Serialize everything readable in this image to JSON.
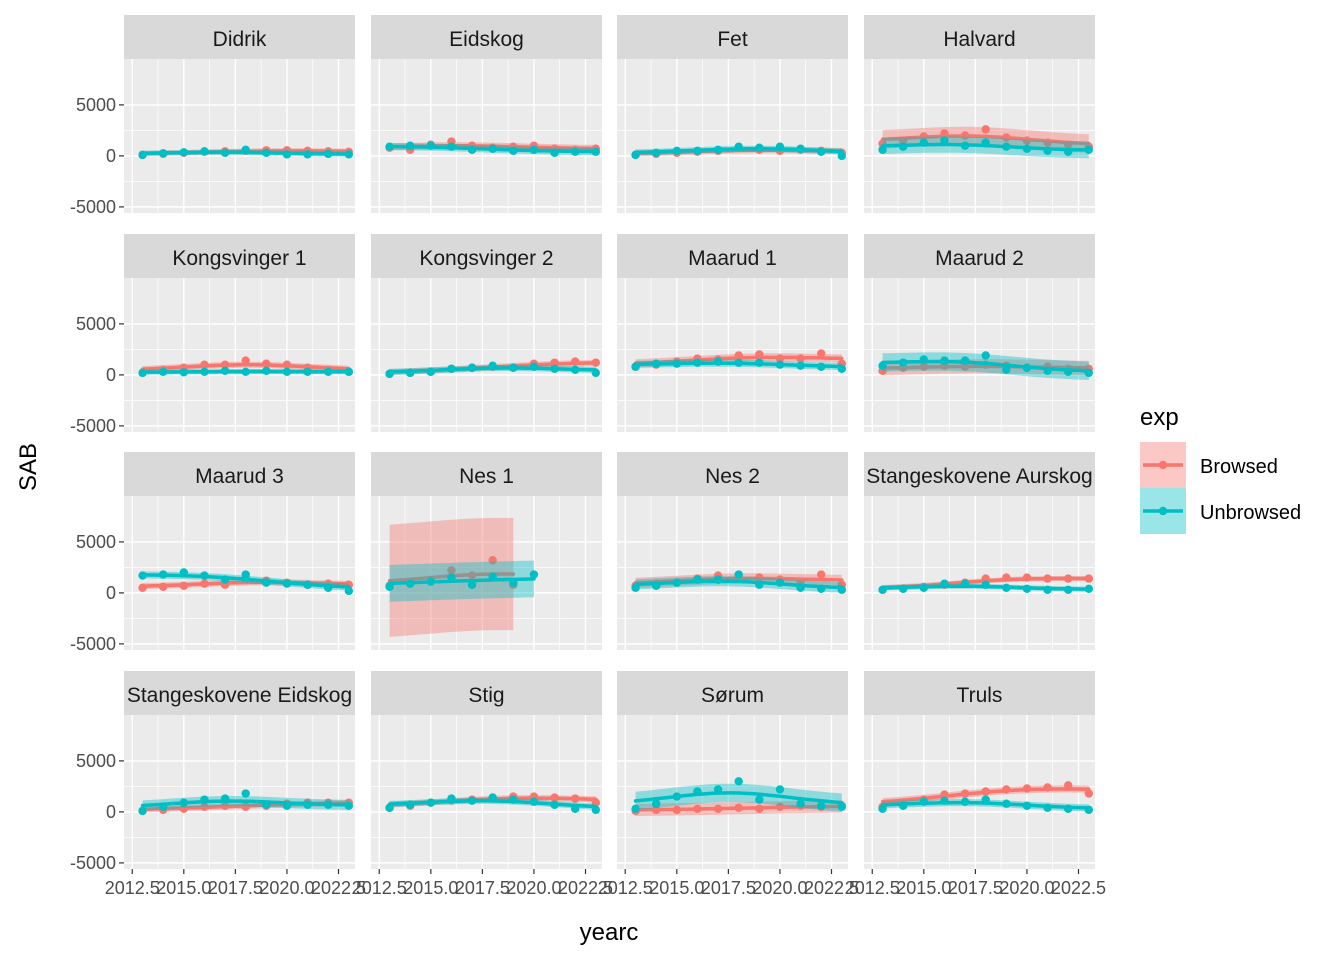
{
  "chart_data": {
    "type": "line",
    "facet_by": "site",
    "xlabel": "yearc",
    "ylabel": "SAB",
    "ylim": [
      -5600,
      9500
    ],
    "xlim": [
      2012.1,
      2023.3
    ],
    "y_ticks": [
      -5000,
      0,
      5000
    ],
    "y_tick_labels": [
      "-5000",
      "0",
      "5000"
    ],
    "x_ticks": [
      2012.5,
      2015,
      2017.5,
      2020,
      2022.5
    ],
    "x_tick_labels": [
      "2012.5",
      "2015.0",
      "2017.5",
      "2020.0",
      "2022.5"
    ],
    "grid": true,
    "legend": {
      "title": "exp",
      "position": "right",
      "entries": [
        {
          "name": "Browsed",
          "color": "#F8766D"
        },
        {
          "name": "Unbrowsed",
          "color": "#00BFC4"
        }
      ]
    },
    "colors": {
      "Browsed": "#F8766D",
      "Unbrowsed": "#00BFC4",
      "panel_bg": "#EBEBEB",
      "strip_bg": "#D9D9D9",
      "grid": "#FFFFFF"
    },
    "panels": [
      {
        "title": "Didrik",
        "Browsed": {
          "x": [
            2013,
            2014,
            2015,
            2016,
            2017,
            2018,
            2019,
            2020,
            2021,
            2022,
            2023
          ],
          "y": [
            100,
            200,
            300,
            400,
            450,
            500,
            550,
            550,
            500,
            450,
            400
          ],
          "se": 250
        },
        "Unbrowsed": {
          "x": [
            2013,
            2014,
            2015,
            2016,
            2017,
            2018,
            2019,
            2020,
            2021,
            2022,
            2023
          ],
          "y": [
            100,
            250,
            350,
            450,
            300,
            600,
            300,
            150,
            150,
            200,
            150
          ],
          "se": 250
        }
      },
      {
        "title": "Eidskog",
        "Browsed": {
          "x": [
            2013,
            2014,
            2015,
            2016,
            2017,
            2018,
            2019,
            2020,
            2021,
            2022,
            2023
          ],
          "y": [
            800,
            600,
            1100,
            1400,
            1000,
            800,
            900,
            1000,
            700,
            600,
            700
          ],
          "se": 350
        },
        "Unbrowsed": {
          "x": [
            2013,
            2014,
            2015,
            2016,
            2017,
            2018,
            2019,
            2020,
            2021,
            2022,
            2023
          ],
          "y": [
            900,
            1000,
            1000,
            900,
            600,
            700,
            500,
            600,
            300,
            400,
            400
          ],
          "se": 350
        }
      },
      {
        "title": "Fet",
        "Browsed": {
          "x": [
            2013,
            2014,
            2015,
            2016,
            2017,
            2018,
            2019,
            2020,
            2021,
            2022,
            2023
          ],
          "y": [
            100,
            200,
            300,
            400,
            500,
            800,
            600,
            500,
            600,
            500,
            300
          ],
          "se": 300
        },
        "Unbrowsed": {
          "x": [
            2013,
            2014,
            2015,
            2016,
            2017,
            2018,
            2019,
            2020,
            2021,
            2022,
            2023
          ],
          "y": [
            100,
            300,
            500,
            500,
            600,
            900,
            800,
            900,
            700,
            400,
            0
          ],
          "se": 300
        }
      },
      {
        "title": "Halvard",
        "Browsed": {
          "x": [
            2013,
            2014,
            2015,
            2016,
            2017,
            2018,
            2019,
            2020,
            2021,
            2022,
            2023
          ],
          "y": [
            1200,
            1500,
            1900,
            2200,
            2000,
            2600,
            1800,
            1500,
            1300,
            1100,
            900
          ],
          "se": 900
        },
        "Unbrowsed": {
          "x": [
            2013,
            2014,
            2015,
            2016,
            2017,
            2018,
            2019,
            2020,
            2021,
            2022,
            2023
          ],
          "y": [
            600,
            900,
            1300,
            1500,
            1000,
            1300,
            900,
            700,
            500,
            400,
            600
          ],
          "se": 800
        }
      },
      {
        "title": "Kongsvinger 1",
        "Browsed": {
          "x": [
            2013,
            2014,
            2015,
            2016,
            2017,
            2018,
            2019,
            2020,
            2021,
            2022,
            2023
          ],
          "y": [
            200,
            500,
            700,
            1000,
            1000,
            1400,
            1100,
            1000,
            700,
            500,
            300
          ],
          "se": 300
        },
        "Unbrowsed": {
          "x": [
            2013,
            2014,
            2015,
            2016,
            2017,
            2018,
            2019,
            2020,
            2021,
            2022,
            2023
          ],
          "y": [
            200,
            300,
            250,
            300,
            400,
            300,
            400,
            300,
            300,
            300,
            300
          ],
          "se": 250
        }
      },
      {
        "title": "Kongsvinger 2",
        "Browsed": {
          "x": [
            2013,
            2014,
            2015,
            2016,
            2017,
            2018,
            2019,
            2020,
            2021,
            2022,
            2023
          ],
          "y": [
            100,
            200,
            300,
            600,
            700,
            800,
            700,
            1100,
            1200,
            1300,
            1200
          ],
          "se": 300
        },
        "Unbrowsed": {
          "x": [
            2013,
            2014,
            2015,
            2016,
            2017,
            2018,
            2019,
            2020,
            2021,
            2022,
            2023
          ],
          "y": [
            100,
            200,
            300,
            600,
            700,
            900,
            700,
            800,
            600,
            500,
            200
          ],
          "se": 300
        }
      },
      {
        "title": "Maarud 1",
        "Browsed": {
          "x": [
            2013,
            2014,
            2015,
            2016,
            2017,
            2018,
            2019,
            2020,
            2021,
            2022,
            2023
          ],
          "y": [
            800,
            1000,
            1300,
            1600,
            1500,
            1900,
            2000,
            1600,
            1600,
            2100,
            1100
          ],
          "se": 400
        },
        "Unbrowsed": {
          "x": [
            2013,
            2014,
            2015,
            2016,
            2017,
            2018,
            2019,
            2020,
            2021,
            2022,
            2023
          ],
          "y": [
            800,
            1100,
            1100,
            1200,
            1300,
            1200,
            1200,
            1000,
            900,
            800,
            600
          ],
          "se": 350
        }
      },
      {
        "title": "Maarud 2",
        "Browsed": {
          "x": [
            2013,
            2014,
            2015,
            2016,
            2017,
            2018,
            2019,
            2020,
            2021,
            2022,
            2023
          ],
          "y": [
            400,
            700,
            800,
            900,
            800,
            1000,
            900,
            700,
            800,
            600,
            600
          ],
          "se": 700
        },
        "Unbrowsed": {
          "x": [
            2013,
            2014,
            2015,
            2016,
            2017,
            2018,
            2019,
            2020,
            2021,
            2022,
            2023
          ],
          "y": [
            900,
            1200,
            1500,
            1400,
            1400,
            1900,
            500,
            700,
            400,
            300,
            200
          ],
          "se": 900
        }
      },
      {
        "title": "Maarud 3",
        "Browsed": {
          "x": [
            2013,
            2014,
            2015,
            2016,
            2017,
            2018,
            2019,
            2020,
            2021,
            2022,
            2023
          ],
          "y": [
            500,
            600,
            700,
            900,
            800,
            1500,
            1200,
            1000,
            800,
            900,
            800
          ],
          "se": 300
        },
        "Unbrowsed": {
          "x": [
            2013,
            2014,
            2015,
            2016,
            2017,
            2018,
            2019,
            2020,
            2021,
            2022,
            2023
          ],
          "y": [
            1700,
            1800,
            2000,
            1700,
            1300,
            1800,
            1000,
            900,
            800,
            500,
            200
          ],
          "se": 350
        }
      },
      {
        "title": "Nes 1",
        "Browsed": {
          "x": [
            2013,
            2014,
            2015,
            2016,
            2017,
            2018,
            2019
          ],
          "y": [
            700,
            1000,
            1200,
            2200,
            1700,
            3200,
            800
          ],
          "se": 5500
        },
        "Unbrowsed": {
          "x": [
            2013,
            2014,
            2015,
            2016,
            2017,
            2018,
            2019,
            2020
          ],
          "y": [
            600,
            900,
            1100,
            1500,
            800,
            1600,
            1000,
            1800
          ],
          "se": 1800
        }
      },
      {
        "title": "Nes 2",
        "Browsed": {
          "x": [
            2013,
            2014,
            2015,
            2016,
            2017,
            2018,
            2019,
            2020,
            2021,
            2022,
            2023
          ],
          "y": [
            700,
            900,
            1000,
            1400,
            1700,
            1600,
            1500,
            1300,
            1100,
            1800,
            800
          ],
          "se": 500
        },
        "Unbrowsed": {
          "x": [
            2013,
            2014,
            2015,
            2016,
            2017,
            2018,
            2019,
            2020,
            2021,
            2022,
            2023
          ],
          "y": [
            500,
            700,
            1000,
            1300,
            1300,
            1800,
            800,
            1000,
            500,
            400,
            300
          ],
          "se": 500
        }
      },
      {
        "title": "Stangeskovene Aurskog",
        "Browsed": {
          "x": [
            2013,
            2014,
            2015,
            2016,
            2017,
            2018,
            2019,
            2020,
            2021,
            2022,
            2023
          ],
          "y": [
            300,
            400,
            600,
            800,
            1000,
            1400,
            1500,
            1500,
            1400,
            1400,
            1400
          ],
          "se": 250
        },
        "Unbrowsed": {
          "x": [
            2013,
            2014,
            2015,
            2016,
            2017,
            2018,
            2019,
            2020,
            2021,
            2022,
            2023
          ],
          "y": [
            300,
            400,
            500,
            900,
            900,
            800,
            500,
            400,
            300,
            300,
            400
          ],
          "se": 250
        }
      },
      {
        "title": "Stangeskovene Eidskog",
        "Browsed": {
          "x": [
            2013,
            2014,
            2015,
            2016,
            2017,
            2018,
            2019,
            2020,
            2021,
            2022,
            2023
          ],
          "y": [
            100,
            200,
            300,
            500,
            600,
            500,
            600,
            800,
            900,
            900,
            900
          ],
          "se": 300
        },
        "Unbrowsed": {
          "x": [
            2013,
            2014,
            2015,
            2016,
            2017,
            2018,
            2019,
            2020,
            2021,
            2022,
            2023
          ],
          "y": [
            100,
            500,
            900,
            1200,
            1300,
            1800,
            700,
            600,
            700,
            700,
            600
          ],
          "se": 500
        }
      },
      {
        "title": "Stig",
        "Browsed": {
          "x": [
            2013,
            2014,
            2015,
            2016,
            2017,
            2018,
            2019,
            2020,
            2021,
            2022,
            2023
          ],
          "y": [
            400,
            600,
            900,
            1100,
            1200,
            1400,
            1500,
            1500,
            1400,
            1300,
            900
          ],
          "se": 300
        },
        "Unbrowsed": {
          "x": [
            2013,
            2014,
            2015,
            2016,
            2017,
            2018,
            2019,
            2020,
            2021,
            2022,
            2023
          ],
          "y": [
            400,
            700,
            900,
            1300,
            1100,
            1400,
            1200,
            1000,
            700,
            300,
            200
          ],
          "se": 300
        }
      },
      {
        "title": "Sørum",
        "Browsed": {
          "x": [
            2013,
            2014,
            2015,
            2016,
            2017,
            2018,
            2019,
            2020,
            2021,
            2022,
            2023
          ],
          "y": [
            100,
            200,
            200,
            300,
            300,
            400,
            300,
            500,
            600,
            500,
            600
          ],
          "se": 600
        },
        "Unbrowsed": {
          "x": [
            2013,
            2014,
            2015,
            2016,
            2017,
            2018,
            2019,
            2020,
            2021,
            2022,
            2023
          ],
          "y": [
            300,
            800,
            1500,
            2000,
            2200,
            3000,
            1200,
            2200,
            800,
            600,
            500
          ],
          "se": 900
        }
      },
      {
        "title": "Truls",
        "Browsed": {
          "x": [
            2013,
            2014,
            2015,
            2016,
            2017,
            2018,
            2019,
            2020,
            2021,
            2022,
            2023
          ],
          "y": [
            500,
            800,
            1200,
            1700,
            1800,
            2000,
            2200,
            2300,
            2400,
            2600,
            1800
          ],
          "se": 350
        },
        "Unbrowsed": {
          "x": [
            2013,
            2014,
            2015,
            2016,
            2017,
            2018,
            2019,
            2020,
            2021,
            2022,
            2023
          ],
          "y": [
            300,
            600,
            1000,
            1100,
            1000,
            1200,
            800,
            600,
            400,
            300,
            200
          ],
          "se": 350
        }
      }
    ]
  }
}
